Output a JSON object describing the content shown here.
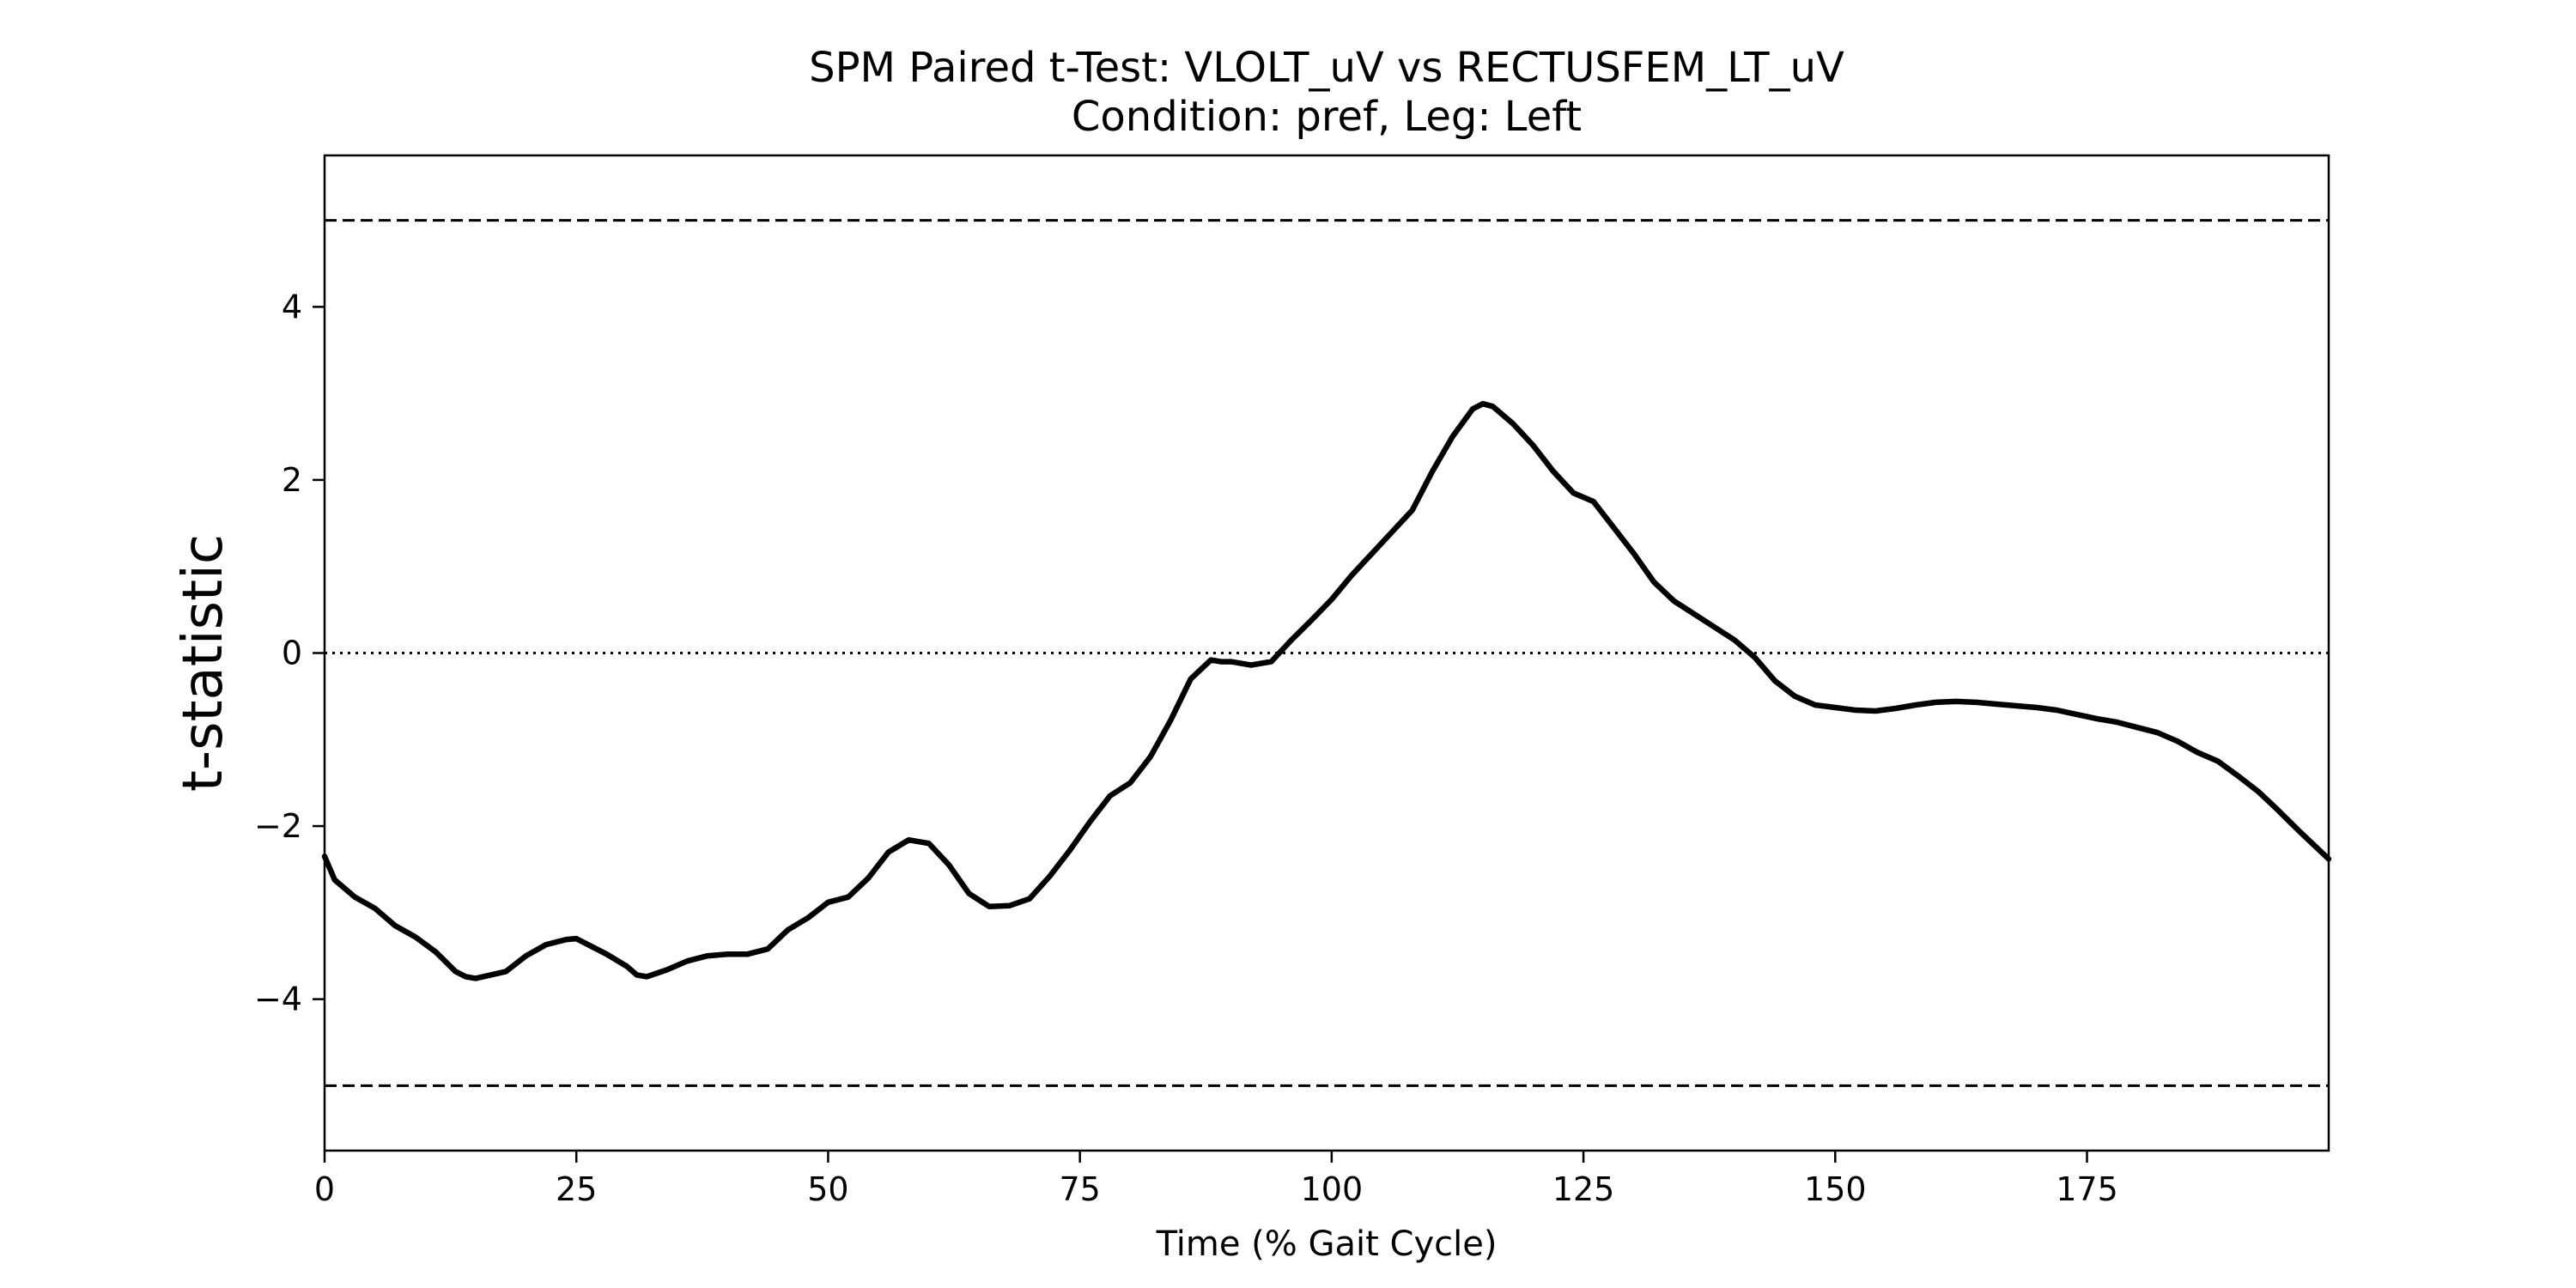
{
  "chart_data": {
    "type": "line",
    "title": "SPM Paired t-Test: VLOLT_uV vs RECTUSFEM_LT_uV",
    "subtitle": "Condition: pref, Leg: Left",
    "xlabel": "Time (% Gait Cycle)",
    "ylabel": "t-statistic",
    "xlim": [
      0,
      199
    ],
    "ylim": [
      -5.75,
      5.75
    ],
    "xticks": [
      0,
      25,
      50,
      75,
      100,
      125,
      150,
      175
    ],
    "xtick_labels": [
      "0",
      "25",
      "50",
      "75",
      "100",
      "125",
      "150",
      "175"
    ],
    "yticks": [
      -4,
      -2,
      0,
      2,
      4
    ],
    "ytick_labels": [
      "−4",
      "−2",
      "0",
      "2",
      "4"
    ],
    "grid": false,
    "reference_lines": [
      {
        "y": 5.0,
        "style": "dashed"
      },
      {
        "y": -5.0,
        "style": "dashed"
      },
      {
        "y": 0,
        "style": "dotted"
      }
    ],
    "series": [
      {
        "color": "#000000",
        "x": [
          0,
          1,
          3,
          5,
          7,
          9,
          11,
          13,
          14,
          15,
          18,
          20,
          22,
          24,
          25,
          28,
          30,
          31,
          32,
          34,
          36,
          38,
          40,
          42,
          44,
          46,
          48,
          50,
          52,
          54,
          56,
          58,
          60,
          62,
          64,
          66,
          68,
          70,
          72,
          74,
          76,
          78,
          80,
          82,
          84,
          86,
          88,
          89,
          90,
          92,
          94,
          96,
          98,
          100,
          102,
          104,
          106,
          108,
          110,
          112,
          114,
          115,
          116,
          118,
          120,
          122,
          124,
          126,
          128,
          130,
          132,
          134,
          136,
          138,
          140,
          142,
          144,
          146,
          148,
          150,
          152,
          154,
          156,
          158,
          160,
          162,
          164,
          166,
          168,
          170,
          172,
          174,
          176,
          178,
          180,
          182,
          184,
          186,
          188,
          190,
          192,
          194,
          196,
          199
        ],
        "y": [
          -2.35,
          -2.62,
          -2.82,
          -2.95,
          -3.15,
          -3.28,
          -3.45,
          -3.68,
          -3.74,
          -3.76,
          -3.68,
          -3.5,
          -3.37,
          -3.31,
          -3.3,
          -3.48,
          -3.62,
          -3.72,
          -3.74,
          -3.66,
          -3.56,
          -3.5,
          -3.48,
          -3.48,
          -3.42,
          -3.2,
          -3.06,
          -2.88,
          -2.82,
          -2.6,
          -2.3,
          -2.16,
          -2.2,
          -2.45,
          -2.78,
          -2.93,
          -2.92,
          -2.84,
          -2.58,
          -2.28,
          -1.95,
          -1.65,
          -1.5,
          -1.2,
          -0.78,
          -0.3,
          -0.08,
          -0.1,
          -0.1,
          -0.14,
          -0.1,
          0.15,
          0.38,
          0.62,
          0.9,
          1.15,
          1.4,
          1.65,
          2.1,
          2.5,
          2.82,
          2.88,
          2.85,
          2.65,
          2.4,
          2.1,
          1.85,
          1.75,
          1.45,
          1.15,
          0.82,
          0.6,
          0.45,
          0.3,
          0.15,
          -0.05,
          -0.32,
          -0.5,
          -0.6,
          -0.63,
          -0.66,
          -0.67,
          -0.64,
          -0.6,
          -0.57,
          -0.56,
          -0.57,
          -0.59,
          -0.61,
          -0.63,
          -0.66,
          -0.71,
          -0.76,
          -0.8,
          -0.86,
          -0.92,
          -1.02,
          -1.15,
          -1.25,
          -1.42,
          -1.6,
          -1.82,
          -2.05,
          -2.38
        ]
      }
    ]
  }
}
